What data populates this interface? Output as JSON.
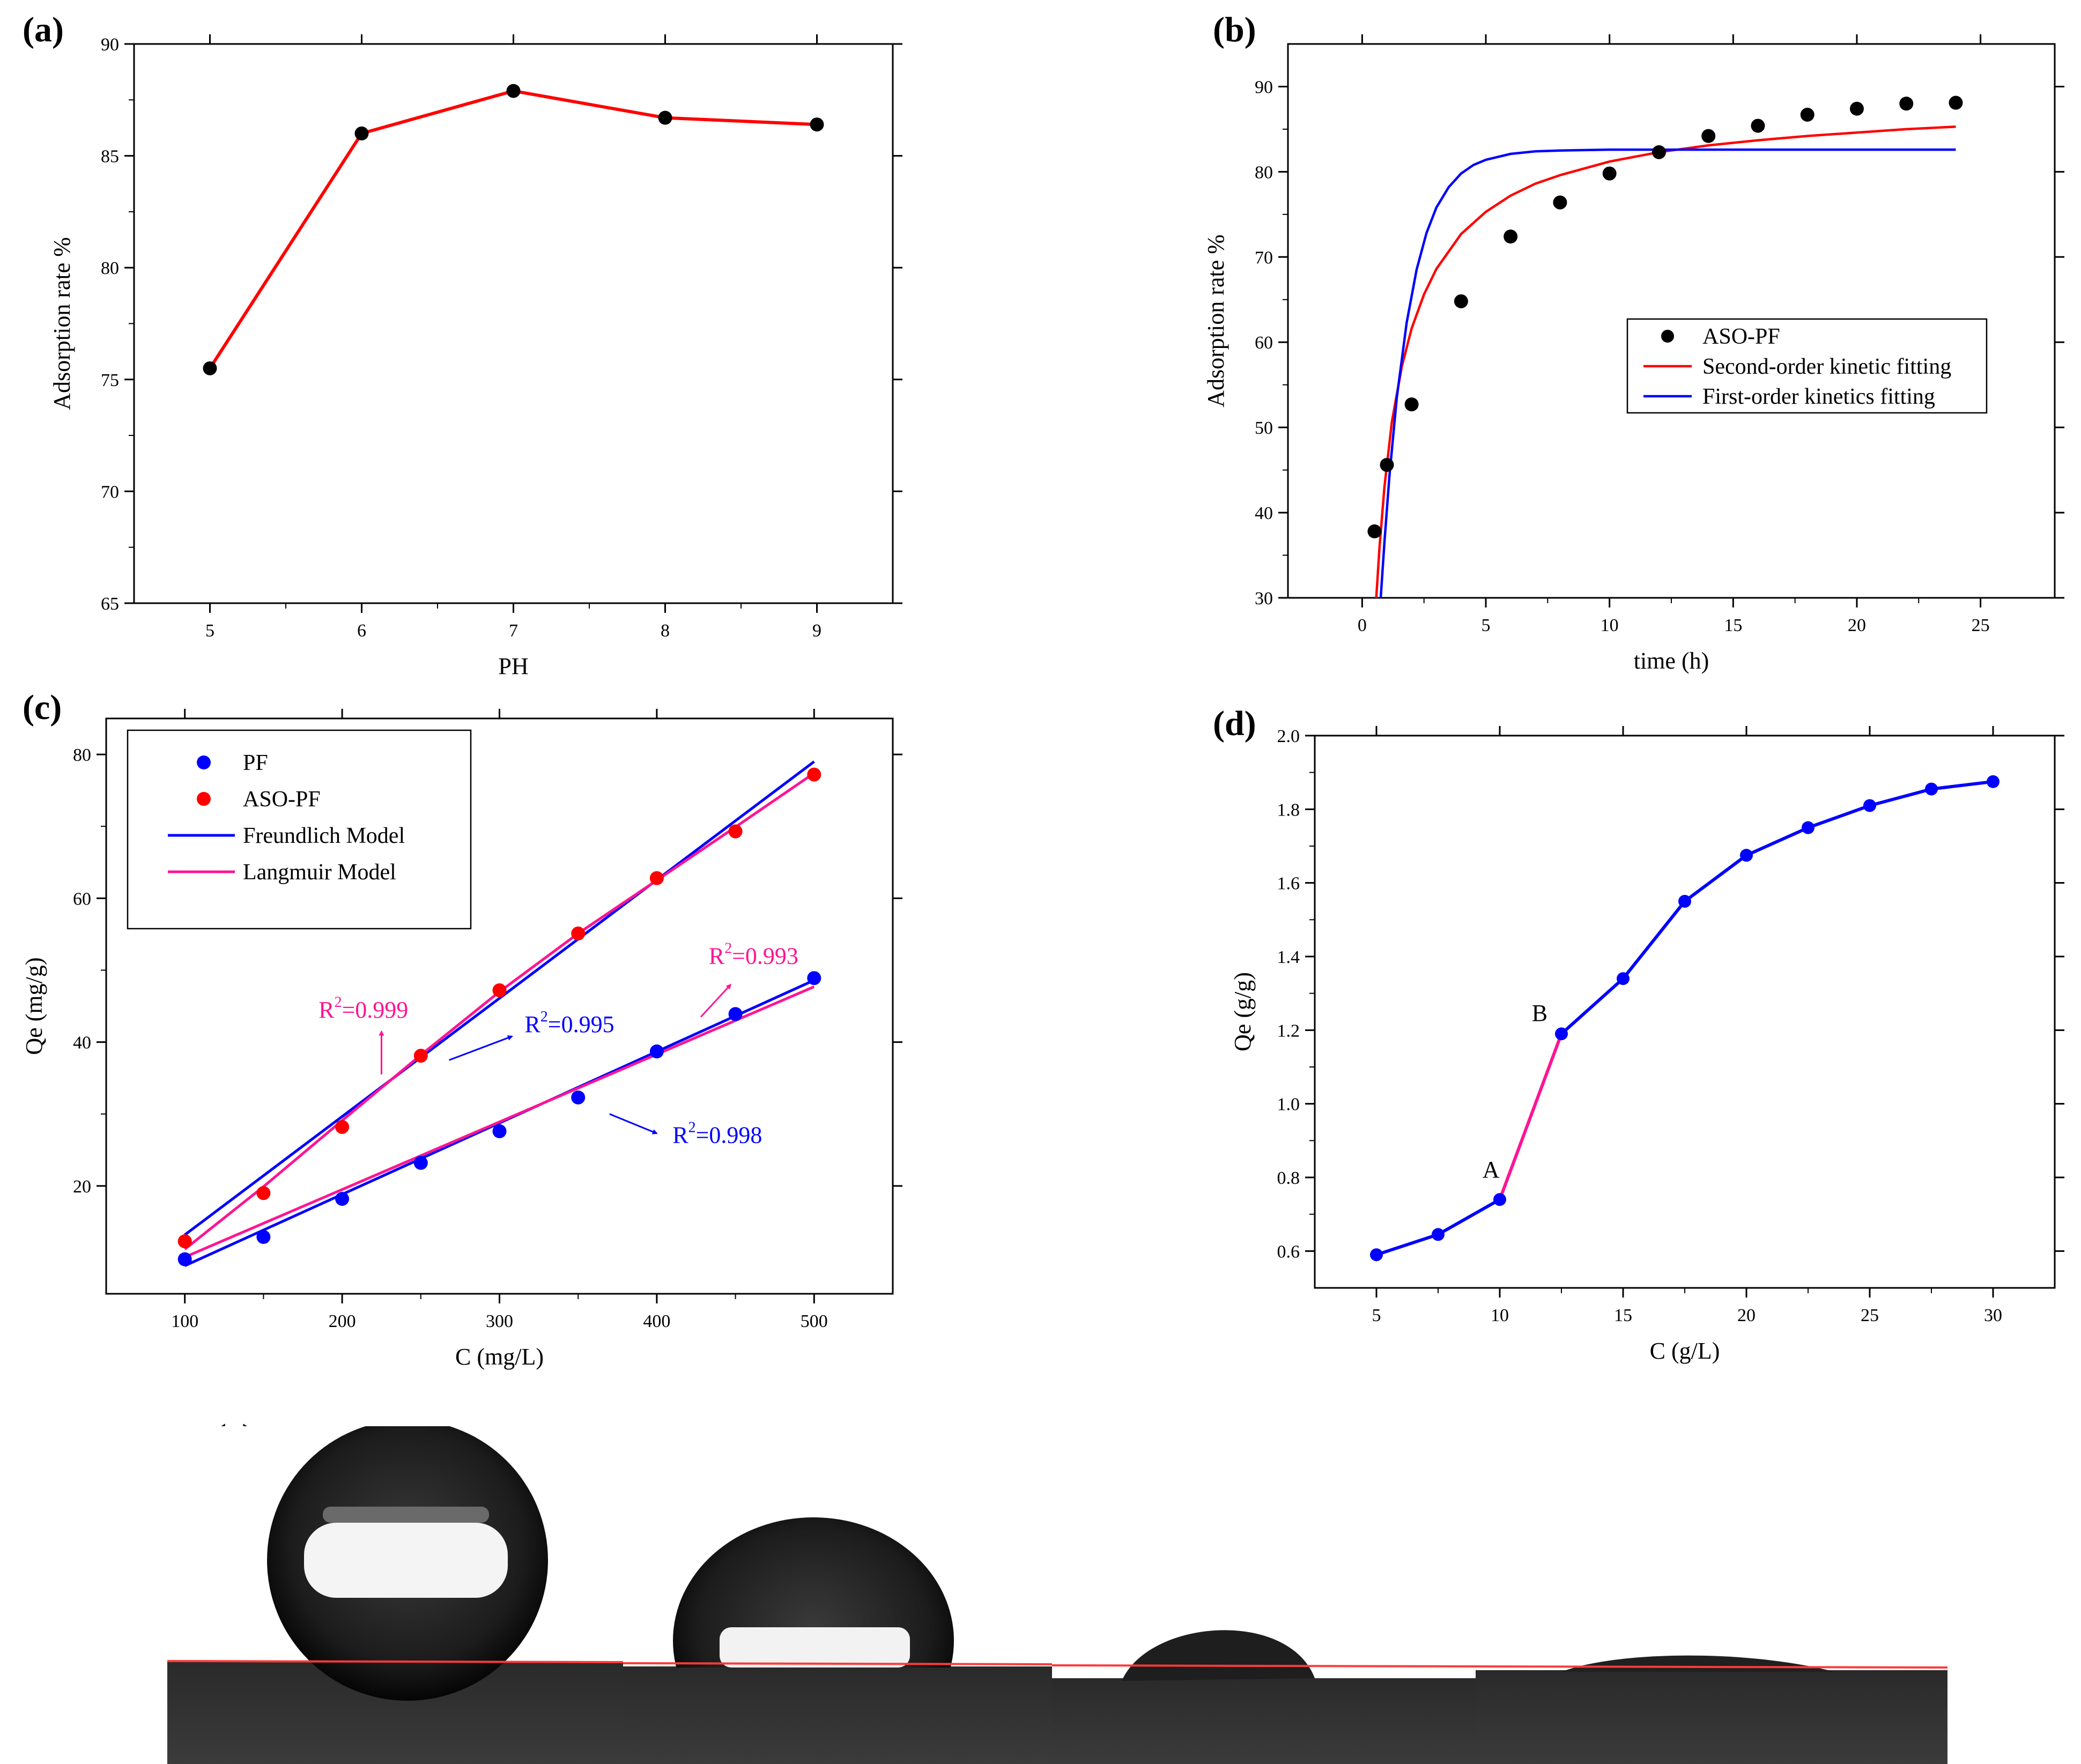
{
  "figure": {
    "panel_e_label": "(e)"
  },
  "chart_data": [
    {
      "id": "a",
      "panel_label": "(a)",
      "type": "line",
      "xlabel": "PH",
      "ylabel": "Adsorption rate %",
      "xlim": [
        4.5,
        9.5
      ],
      "ylim": [
        65,
        90
      ],
      "xticks": [
        5,
        6,
        7,
        8,
        9
      ],
      "yticks": [
        65,
        70,
        75,
        80,
        85,
        90
      ],
      "grid": false,
      "series": [
        {
          "x": [
            5,
            6,
            7,
            8,
            9
          ],
          "values": [
            75.5,
            86.0,
            87.9,
            86.7,
            86.4
          ],
          "line_color": "#ff0000",
          "marker_color": "#000000"
        }
      ]
    },
    {
      "id": "b",
      "panel_label": "(b)",
      "type": "scatter",
      "xlabel": "time (h)",
      "ylabel": "Adsorption rate %",
      "xlim": [
        -3,
        28
      ],
      "ylim": [
        30,
        95
      ],
      "xticks": [
        0,
        5,
        10,
        15,
        20,
        25
      ],
      "yticks": [
        30,
        40,
        50,
        60,
        70,
        80,
        90
      ],
      "grid": false,
      "legend_position": "center-right",
      "series": [
        {
          "name": "ASO-PF",
          "kind": "points",
          "color": "#000000",
          "x": [
            0.5,
            1,
            2,
            4,
            6,
            8,
            10,
            12,
            14,
            16,
            18,
            20,
            22,
            24
          ],
          "values": [
            37.8,
            45.6,
            52.7,
            64.8,
            72.4,
            76.4,
            79.8,
            82.3,
            84.2,
            85.4,
            86.7,
            87.4,
            88.0,
            88.1
          ]
        },
        {
          "name": "Second-order kinetic fitting",
          "kind": "line",
          "color": "#ff0000",
          "x": [
            0.57,
            0.7,
            0.9,
            1.2,
            1.6,
            2,
            2.5,
            3,
            4,
            5,
            6,
            7,
            8,
            10,
            12,
            14,
            16,
            18,
            20,
            22,
            24
          ],
          "values": [
            30.0,
            35.9,
            43.0,
            50.6,
            57.1,
            61.6,
            65.6,
            68.6,
            72.7,
            75.3,
            77.2,
            78.6,
            79.6,
            81.2,
            82.3,
            83.1,
            83.7,
            84.2,
            84.6,
            85.0,
            85.3
          ]
        },
        {
          "name": "First-order kinetics fitting",
          "kind": "line",
          "color": "#0000ff",
          "x": [
            0.75,
            0.9,
            1.1,
            1.4,
            1.8,
            2.2,
            2.6,
            3,
            3.5,
            4,
            4.5,
            5,
            6,
            7,
            8,
            10,
            12,
            15,
            18,
            21,
            24
          ],
          "values": [
            30.0,
            36.5,
            44.2,
            53.5,
            62.3,
            68.5,
            72.8,
            75.8,
            78.2,
            79.8,
            80.8,
            81.4,
            82.1,
            82.4,
            82.5,
            82.6,
            82.6,
            82.6,
            82.6,
            82.6,
            82.6
          ]
        }
      ]
    },
    {
      "id": "c",
      "panel_label": "(c)",
      "type": "scatter",
      "xlabel": "C (mg/L)",
      "ylabel": "Qe (mg/g)",
      "xlim": [
        50,
        550
      ],
      "ylim": [
        5,
        85
      ],
      "xticks": [
        100,
        200,
        300,
        400,
        500
      ],
      "yticks": [
        20,
        40,
        60,
        80
      ],
      "grid": false,
      "legend_position": "top-left",
      "series": [
        {
          "name": "PF",
          "kind": "points",
          "color": "#0000ff",
          "x": [
            100,
            150,
            200,
            250,
            300,
            350,
            400,
            450,
            500
          ],
          "values": [
            9.8,
            12.9,
            18.2,
            23.2,
            27.6,
            32.3,
            38.7,
            43.9,
            48.9
          ]
        },
        {
          "name": "ASO-PF",
          "kind": "points",
          "color": "#ff0000",
          "x": [
            100,
            150,
            200,
            250,
            300,
            350,
            400,
            450,
            500
          ],
          "values": [
            12.3,
            19.0,
            28.2,
            38.1,
            47.2,
            55.1,
            62.8,
            69.3,
            77.2
          ]
        },
        {
          "name": "Freundlich Model",
          "kind": "line",
          "color": "#0000ff",
          "x": [
            100,
            500
          ],
          "values": [
            13.2,
            79.0
          ]
        },
        {
          "name": "Langmuir Model",
          "kind": "line",
          "color": "#ff1493",
          "x": [
            100,
            150,
            200,
            250,
            300,
            350,
            400,
            450,
            500
          ],
          "values": [
            11.2,
            19.9,
            29.1,
            38.2,
            47.0,
            55.1,
            62.5,
            69.9,
            77.4
          ]
        },
        {
          "kind": "line",
          "color": "#0000ff",
          "x": [
            100,
            500
          ],
          "values": [
            8.9,
            48.6
          ]
        },
        {
          "kind": "line",
          "color": "#ff1493",
          "x": [
            100,
            500
          ],
          "values": [
            10.1,
            47.7
          ]
        }
      ],
      "annotations": [
        {
          "text": "=0.999",
          "base": "R",
          "sup": "2",
          "color": "#ff1493",
          "x": 185,
          "y": 43.4,
          "arrow": {
            "x1": 225,
            "y1": 35.5,
            "x2": 225,
            "y2": 41.5
          }
        },
        {
          "text": "=0.995",
          "base": "R",
          "sup": "2",
          "color": "#0000ff",
          "x": 316,
          "y": 41.4,
          "arrow": {
            "x1": 268,
            "y1": 37.5,
            "x2": 308,
            "y2": 40.8
          }
        },
        {
          "text": "=0.993",
          "base": "R",
          "sup": "2",
          "color": "#ff1493",
          "x": 433,
          "y": 50.9,
          "arrow": {
            "x1": 428,
            "y1": 43.5,
            "x2": 447,
            "y2": 48.0
          }
        },
        {
          "text": "=0.998",
          "base": "R",
          "sup": "2",
          "color": "#0000ff",
          "x": 410,
          "y": 26.0,
          "arrow": {
            "x1": 370,
            "y1": 30.0,
            "x2": 400,
            "y2": 27.3
          }
        }
      ]
    },
    {
      "id": "d",
      "panel_label": "(d)",
      "type": "line",
      "xlabel": "C (g/L)",
      "ylabel": "Qe (g/g)",
      "xlim": [
        2.5,
        32.5
      ],
      "ylim": [
        0.5,
        2.0
      ],
      "xticks": [
        5,
        10,
        15,
        20,
        25,
        30
      ],
      "yticks": [
        0.6,
        0.8,
        1.0,
        1.2,
        1.4,
        1.6,
        1.8,
        2.0
      ],
      "grid": false,
      "series": [
        {
          "x": [
            5,
            7.5,
            10,
            12.5,
            15,
            17.5,
            20,
            22.5,
            25,
            27.5,
            30
          ],
          "values": [
            0.59,
            0.645,
            0.74,
            1.19,
            1.34,
            1.55,
            1.675,
            1.75,
            1.81,
            1.855,
            1.875
          ],
          "line_color": "#0000ff",
          "marker_color": "#0000ff",
          "highlight_segment": {
            "from_index": 2,
            "to_index": 3,
            "color": "#ff1493"
          }
        }
      ],
      "annotations": [
        {
          "text": "A",
          "color": "#000000",
          "x": 9.3,
          "y": 0.8
        },
        {
          "text": "B",
          "color": "#000000",
          "x": 11.3,
          "y": 1.225
        }
      ]
    }
  ]
}
